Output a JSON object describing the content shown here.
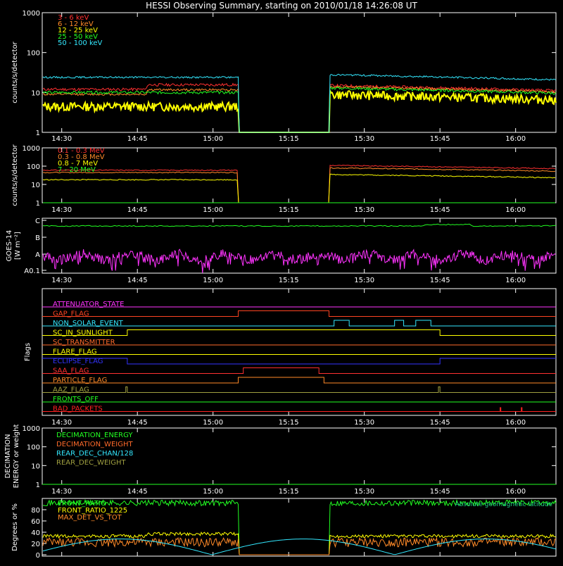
{
  "title": "HESSI Observing Summary, starting on 2010/01/18 14:26:08 UT",
  "x_ticks": [
    "14:30",
    "14:45",
    "15:00",
    "15:15",
    "15:30",
    "15:45",
    "16:00"
  ],
  "chart_data": [
    {
      "type": "line",
      "panel": "low-energy",
      "ylabel": "counts/s/detector",
      "yscale": "log",
      "ylim": [
        1,
        1000
      ],
      "yticks": [
        "1",
        "10",
        "100",
        "1000"
      ],
      "legend": "top-left",
      "series": [
        {
          "name": "3 - 6 keV",
          "color": "#ff3030"
        },
        {
          "name": "6 - 12 keV",
          "color": "#ff8a28"
        },
        {
          "name": "12 - 25 keV",
          "color": "#ffff00"
        },
        {
          "name": "25 - 50 keV",
          "color": "#22ff22"
        },
        {
          "name": "50 - 100 keV",
          "color": "#33e8ff"
        }
      ]
    },
    {
      "type": "line",
      "panel": "high-energy",
      "ylabel": "counts/s/detector",
      "yscale": "log",
      "ylim": [
        1,
        1000
      ],
      "yticks": [
        "1",
        "10",
        "100",
        "1000"
      ],
      "legend": "top-left",
      "series": [
        {
          "name": "0.1 - 0.3 MeV",
          "color": "#ff3030"
        },
        {
          "name": "0.3 - 0.8 MeV",
          "color": "#ff8a28"
        },
        {
          "name": "0.8 - 7 MeV",
          "color": "#ffff00"
        },
        {
          "name": "7 - 20 MeV",
          "color": "#22ff22"
        }
      ]
    },
    {
      "type": "line",
      "panel": "goes",
      "ylabel1": "GOES-14",
      "ylabel2": "[W m⁻²]",
      "yticks": [
        "A0.1",
        "A",
        "B",
        "C"
      ],
      "series_colors": [
        "#22ff22",
        "#ff33ff"
      ]
    },
    {
      "type": "line",
      "panel": "flags",
      "ylabel": "Flags",
      "flags": [
        {
          "name": "ATTENUATOR_STATE",
          "color": "#ff33ff"
        },
        {
          "name": "GAP_FLAG",
          "color": "#ff4422"
        },
        {
          "name": "NON_SOLAR_EVENT",
          "color": "#33e8ff"
        },
        {
          "name": "SC_IN_SUNLIGHT",
          "color": "#ffff00"
        },
        {
          "name": "SC_TRANSMITTER",
          "color": "#ff6a2a"
        },
        {
          "name": "FLARE_FLAG",
          "color": "#ffff00"
        },
        {
          "name": "ECLIPSE_FLAG",
          "color": "#3333ff"
        },
        {
          "name": "SAA_FLAG",
          "color": "#ff3030"
        },
        {
          "name": "PARTICLE_FLAG",
          "color": "#ff8a28"
        },
        {
          "name": "AAZ_FLAG",
          "color": "#a0a040"
        },
        {
          "name": "FRONTS_OFF",
          "color": "#22ff22"
        },
        {
          "name": "BAD_PACKETS",
          "color": "#ff2222"
        }
      ]
    },
    {
      "type": "line",
      "panel": "decimation",
      "ylabel1": "DECIMATION",
      "ylabel2": "ENERGY or weight",
      "yscale": "log",
      "ylim": [
        1,
        1000
      ],
      "yticks": [
        "1",
        "10",
        "100",
        "1000"
      ],
      "series": [
        {
          "name": "DECIMATION_ENERGY",
          "color": "#22ff22"
        },
        {
          "name": "DECIMATION_WEIGHT",
          "color": "#ff6a2a"
        },
        {
          "name": "REAR_DEC_CHAN/128",
          "color": "#33e8ff"
        },
        {
          "name": "REAR_DEC_WEIGHT",
          "color": "#a0a040"
        }
      ]
    },
    {
      "type": "line",
      "panel": "geometry",
      "ylabel": "Degrees or %",
      "yticks": [
        "0",
        "20",
        "40",
        "60",
        "80"
      ],
      "annotation": "Absolute geomagnetic latitude",
      "series": [
        {
          "name": "FRONT_RATIO",
          "color": "#22ff22"
        },
        {
          "name": "FRONT_RATIO_1225",
          "color": "#ffff00"
        },
        {
          "name": "MAX_DET_VS_TOT",
          "color": "#ff8a28"
        }
      ]
    }
  ]
}
